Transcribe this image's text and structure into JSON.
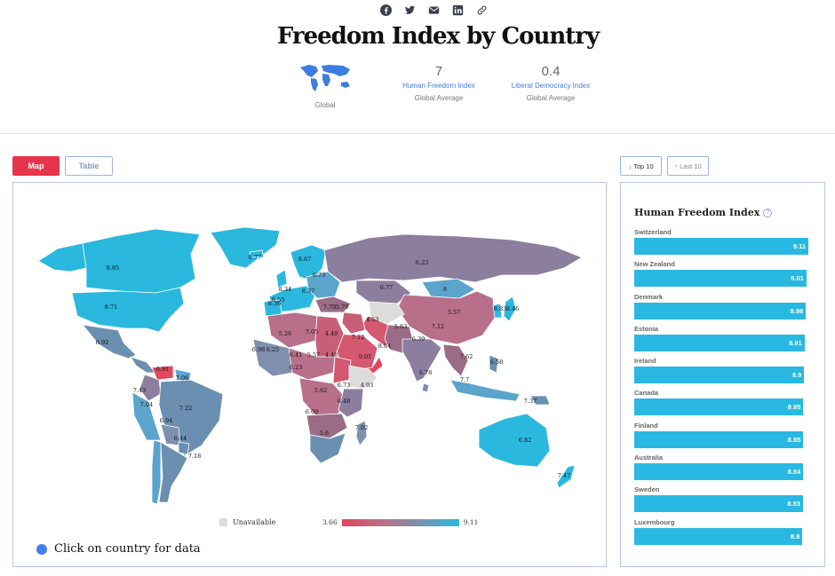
{
  "header": {
    "title": "Freedom Index by Country",
    "share_icons": [
      "facebook-icon",
      "twitter-icon",
      "email-icon",
      "linkedin-icon",
      "link-icon"
    ]
  },
  "stats": {
    "globe_caption": "Global",
    "hfi": {
      "value": "7",
      "name": "Human Freedom Index",
      "sub": "Global Average"
    },
    "ldi": {
      "value": "0.4",
      "name": "Liberal Democracy Index",
      "sub": "Global Average"
    }
  },
  "tabs": {
    "map": "Map",
    "table": "Table"
  },
  "ranking_buttons": {
    "top": "Top 10",
    "last": "Last 10",
    "top_arrow": "↓",
    "last_arrow": "↑"
  },
  "map": {
    "legend_unavailable": "Unavailable",
    "scale_min": "3.66",
    "scale_max": "9.11",
    "hint": "Click on country for data",
    "colors": {
      "high": "#2ab8df",
      "mid": "#7e90ad",
      "low": "#e2475d",
      "na": "#dcdcdc"
    },
    "labels": [
      "8.77",
      "8.85",
      "8.71",
      "6.92",
      "6.91",
      "7.06",
      "7.43",
      "7.04",
      "6.94",
      "7.22",
      "6.44",
      "7.18",
      "8.36",
      "8.87",
      "6.73",
      "8.34",
      "8.37",
      "8.55",
      "7.79",
      "6.23",
      "6.77",
      "8",
      "5.57",
      "4.53",
      "5.63",
      "7.12",
      "4.49",
      "4.48",
      "5.26",
      "7.05",
      "5.57",
      "6.41",
      "6.25",
      "6.23",
      "6.98",
      "5.62",
      "6.73",
      "6.09",
      "6.48",
      "5.6",
      "7.02",
      "5.79",
      "4.93",
      "7.12",
      "6.39",
      "6.78",
      "7.7",
      "7.62",
      "8.83",
      "8.46",
      "6.58",
      "7.37",
      "6.82",
      "7.47",
      "8.84",
      "9.01",
      "5.92",
      "4.06"
    ]
  },
  "ranking": {
    "title": "Human Freedom Index",
    "max": 9.11,
    "items": [
      {
        "country": "Switzerland",
        "value": "9.11"
      },
      {
        "country": "New Zealand",
        "value": "9.01"
      },
      {
        "country": "Denmark",
        "value": "8.98"
      },
      {
        "country": "Estonia",
        "value": "8.91"
      },
      {
        "country": "Ireland",
        "value": "8.9"
      },
      {
        "country": "Canada",
        "value": "8.85"
      },
      {
        "country": "Finland",
        "value": "8.85"
      },
      {
        "country": "Australia",
        "value": "8.84"
      },
      {
        "country": "Sweden",
        "value": "8.83"
      },
      {
        "country": "Luxembourg",
        "value": "8.8"
      }
    ]
  }
}
